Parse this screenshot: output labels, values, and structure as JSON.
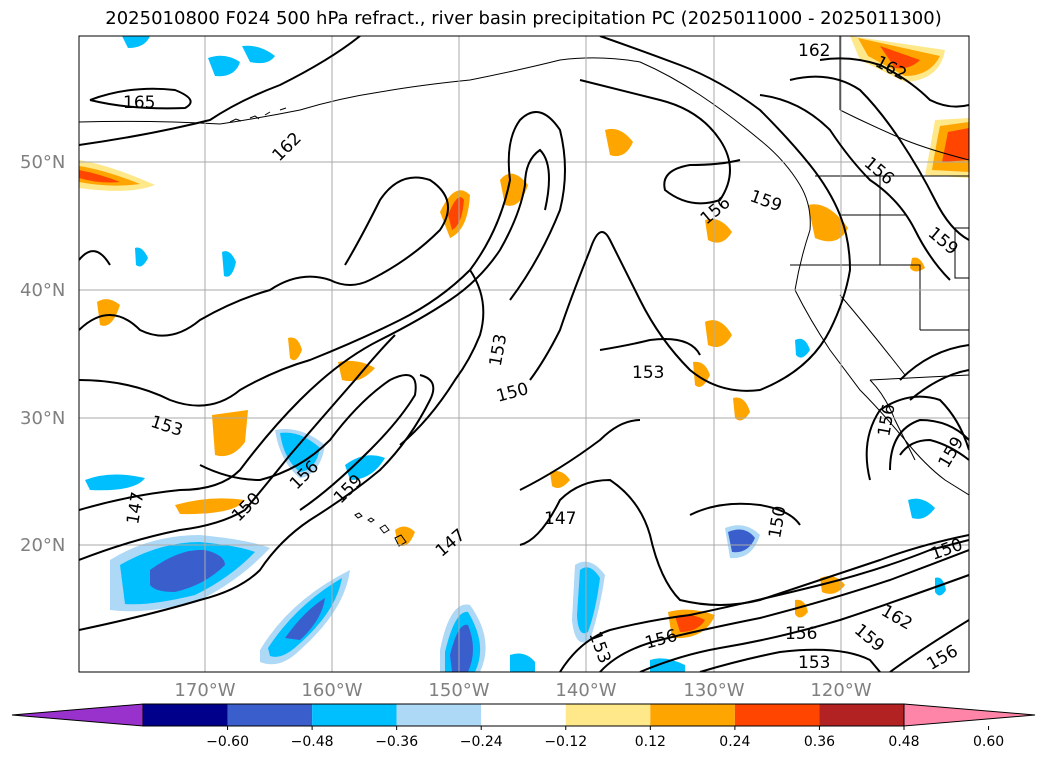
{
  "title": "2025010800 F024 500 hPa refract., river basin precipitation PC (2025011000 - 2025011300)",
  "latitude_labels": [
    "50°N",
    "40°N",
    "30°N",
    "20°N"
  ],
  "longitude_labels": [
    "170°W",
    "160°W",
    "150°W",
    "140°W",
    "130°W",
    "120°W"
  ],
  "contour_labels": [
    "165",
    "162",
    "162",
    "162",
    "156",
    "159",
    "156",
    "159",
    "153",
    "153",
    "150",
    "153",
    "156",
    "159",
    "150",
    "147",
    "147",
    "147",
    "150",
    "156",
    "156",
    "153",
    "159",
    "162",
    "156",
    "150",
    "153",
    "156",
    "159"
  ],
  "colorbar": {
    "ticks": [
      "−0.60",
      "−0.48",
      "−0.36",
      "−0.24",
      "−0.12",
      "0.12",
      "0.24",
      "0.36",
      "0.48",
      "0.60"
    ],
    "colors": [
      "#9932cc",
      "#00008b",
      "#3a5fcd",
      "#00bfff",
      "#add8f6",
      "#ffffff",
      "#ffe88a",
      "#ffa500",
      "#ff4500",
      "#b22222",
      "#ff85a8"
    ]
  }
}
